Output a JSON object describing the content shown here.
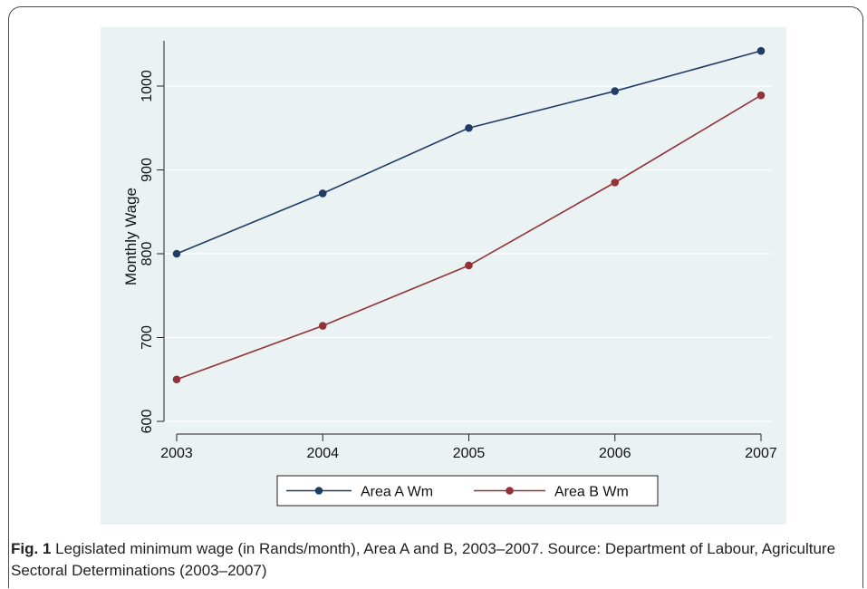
{
  "chart_data": {
    "type": "line",
    "categories": [
      "2003",
      "2004",
      "2005",
      "2006",
      "2007"
    ],
    "x": [
      2003,
      2004,
      2005,
      2006,
      2007
    ],
    "series": [
      {
        "name": "Area A Wm",
        "values": [
          800,
          872,
          950,
          994,
          1042
        ],
        "color": "#1f3d66"
      },
      {
        "name": "Area B Wm",
        "values": [
          650,
          714,
          786,
          885,
          989
        ],
        "color": "#923338"
      }
    ],
    "xlabel": "",
    "ylabel": "Monthly Wage",
    "ylim": [
      600,
      1050
    ],
    "yticks": [
      600,
      700,
      800,
      900,
      1000
    ],
    "grid": true,
    "legend_position": "bottom"
  },
  "caption": {
    "label": "Fig. 1",
    "text": "Legislated minimum wage (in Rands/month), Area A and B, 2003–2007. Source: Department of Labour, Agriculture Sectoral Determinations (2003–2007)"
  }
}
